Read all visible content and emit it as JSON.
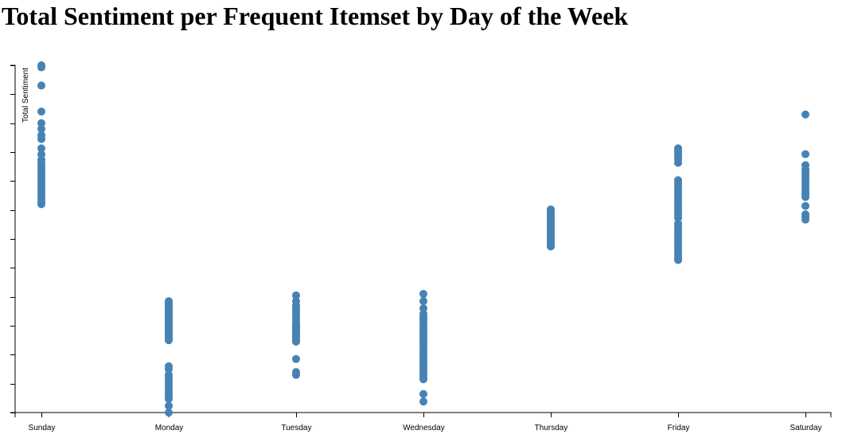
{
  "title": "Total Sentiment per Frequent Itemset by Day of the Week",
  "chart_data": {
    "type": "scatter",
    "title": "Total Sentiment per Frequent Itemset by Day of the Week",
    "xlabel": "",
    "ylabel": "Total Sentiment",
    "ylim": [
      0,
      120
    ],
    "y_tick_step": 10,
    "y_tick_labels_shown": false,
    "grid": false,
    "point_color": "#4682b4",
    "categories": [
      "Sunday",
      "Monday",
      "Tuesday",
      "Wednesday",
      "Thursday",
      "Friday",
      "Saturday"
    ],
    "points": [
      {
        "day": "Sunday",
        "values": [
          120,
          119.3,
          113,
          104,
          100,
          98,
          95.8,
          94.5,
          91.3,
          89.2,
          87.3,
          86,
          85,
          84,
          83,
          82,
          81,
          80.5,
          79.5,
          78.5,
          77.5,
          76.5,
          75.5,
          74.5,
          73.6,
          72.8,
          72
        ]
      },
      {
        "day": "Monday",
        "values": [
          38.5,
          38,
          37.5,
          37,
          36.5,
          36,
          35.5,
          35,
          34.5,
          34,
          33.5,
          33,
          32.5,
          32,
          31.5,
          31,
          30.5,
          30,
          29.5,
          29,
          28.5,
          28,
          27.5,
          27,
          26.5,
          26,
          25.5,
          25,
          16,
          15,
          13,
          12,
          11,
          10,
          9,
          8,
          7,
          6,
          5,
          4.7,
          2.3,
          0
        ]
      },
      {
        "day": "Tuesday",
        "values": [
          40.5,
          38.5,
          37,
          36,
          35,
          34,
          33,
          32,
          31,
          30.5,
          30,
          29.5,
          29,
          28.5,
          28,
          27.5,
          27,
          26.5,
          26,
          25.5,
          25,
          24.5,
          18.5,
          14,
          13
        ]
      },
      {
        "day": "Wednesday",
        "values": [
          41,
          38.5,
          36,
          34,
          33,
          32,
          31,
          30,
          29,
          28,
          27,
          26,
          25,
          24,
          23,
          22,
          21,
          20,
          19,
          18,
          17,
          16,
          15,
          14,
          13,
          12,
          11.5,
          6.4,
          3.8
        ]
      },
      {
        "day": "Thursday",
        "values": [
          70.2,
          69.5,
          68.8,
          68,
          67.3,
          66.6,
          66,
          65.3,
          64.6,
          64,
          63.3,
          62.6,
          62,
          61.3,
          60.6,
          60,
          59.3,
          58.6,
          57.9,
          57.4
        ]
      },
      {
        "day": "Friday",
        "values": [
          91.3,
          90.3,
          89.5,
          88.5,
          87.5,
          86.3,
          80.3,
          79.3,
          78.3,
          77.3,
          76.3,
          75.3,
          74.3,
          73.3,
          72.3,
          71.3,
          70.3,
          69.3,
          68.3,
          67.3,
          65.3,
          64.3,
          63.3,
          62.3,
          61.3,
          60.3,
          59.3,
          58.3,
          57.3,
          56.3,
          55.3,
          54.3,
          53.3,
          52.7
        ]
      },
      {
        "day": "Saturday",
        "values": [
          103,
          89.3,
          85.5,
          84,
          83,
          82,
          81,
          80,
          79,
          78,
          77,
          76,
          75.3,
          74.5,
          71.4,
          68.5,
          67.6,
          66.7
        ]
      }
    ]
  }
}
